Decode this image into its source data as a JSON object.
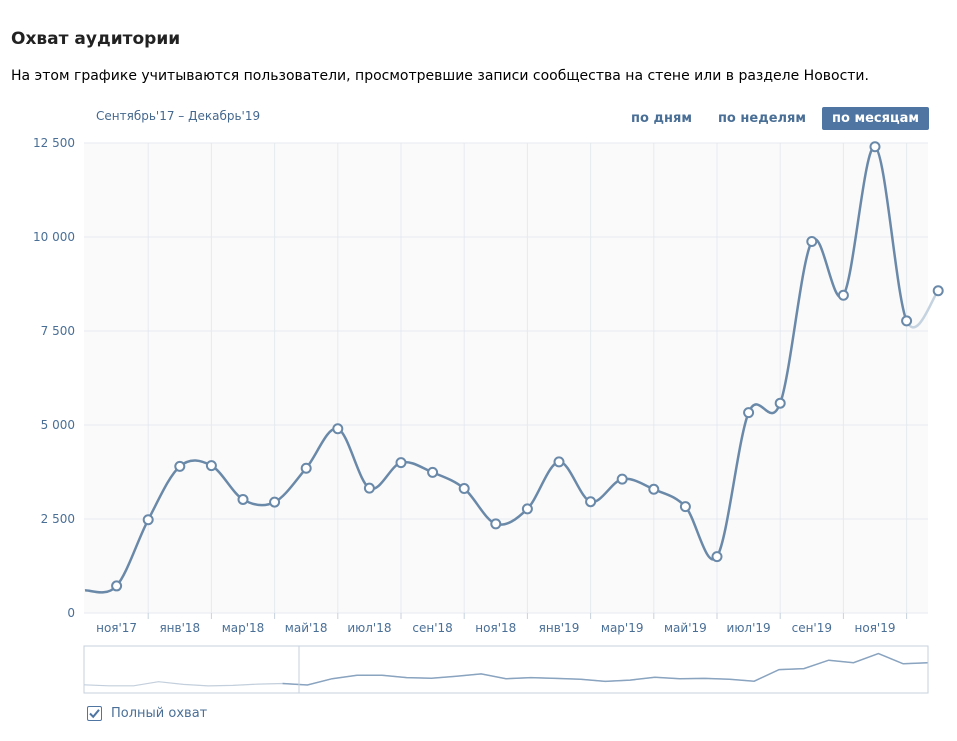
{
  "header": {
    "title": "Охват аудитории",
    "subtitle": "На этом графике учитываются пользователи, просмотревшие записи сообщества на стене или в разделе Новости."
  },
  "period": "Сентябрь'17 – Декабрь'19",
  "tabs": [
    {
      "label": "по дням",
      "active": false
    },
    {
      "label": "по неделям",
      "active": false
    },
    {
      "label": "по месяцам",
      "active": true
    }
  ],
  "legend": {
    "label": "Полный охват",
    "checked": true
  },
  "colors": {
    "line": "#6a89a9",
    "pending_line": "#c5d3e0",
    "accent": "#4f75a2",
    "tick_text": "#4a6f96",
    "grid": "#e5eaf0",
    "plot_bg": "#fafafa",
    "navigator_border": "#c7d2de"
  },
  "chart_data": {
    "type": "line",
    "title": "Охват аудитории",
    "ylim": [
      0,
      12500
    ],
    "y_ticks": [
      0,
      2500,
      5000,
      7500,
      10000,
      12500
    ],
    "y_tick_labels": [
      "0",
      "2 500",
      "5 000",
      "7 500",
      "10 000",
      "12 500"
    ],
    "x_tick_labels": [
      "ноя'17",
      "янв'18",
      "мар'18",
      "май'18",
      "июл'18",
      "сен'18",
      "ноя'18",
      "янв'19",
      "мар'19",
      "май'19",
      "июл'19",
      "сен'19",
      "ноя'19"
    ],
    "grid": true,
    "series": [
      {
        "name": "Полный охват",
        "x": [
          "2017-09",
          "2017-10",
          "2017-11",
          "2017-12",
          "2018-01",
          "2018-02",
          "2018-03",
          "2018-04",
          "2018-05",
          "2018-06",
          "2018-07",
          "2018-08",
          "2018-09",
          "2018-10",
          "2018-11",
          "2018-12",
          "2019-01",
          "2019-02",
          "2019-03",
          "2019-04",
          "2019-05",
          "2019-06",
          "2019-07",
          "2019-08",
          "2019-09",
          "2019-10",
          "2019-11",
          "2019-12"
        ],
        "values": [
          600,
          720,
          2480,
          3900,
          3920,
          3020,
          2950,
          3850,
          4900,
          3320,
          4000,
          3740,
          3310,
          2370,
          2770,
          4020,
          2960,
          3560,
          3290,
          2830,
          1500,
          5330,
          5580,
          9880,
          8450,
          12400,
          7770,
          8570
        ]
      }
    ],
    "navigator_values": [
      580,
      490,
      490,
      870,
      620,
      480,
      520,
      650,
      700,
      560,
      1150,
      1480,
      1480,
      1250,
      1200,
      1380,
      1600,
      1150,
      1250,
      1180,
      1100,
      900,
      1020,
      1280,
      1150,
      1180,
      1100,
      920,
      2000,
      2100,
      2880,
      2650,
      3500,
      2550,
      2650
    ]
  }
}
